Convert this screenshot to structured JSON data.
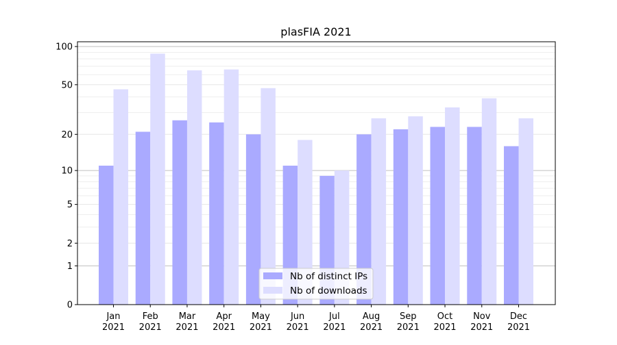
{
  "chart_data": {
    "type": "bar",
    "title": "plasFIA 2021",
    "xlabel": "",
    "ylabel": "",
    "yscale": "log10(1+y)",
    "ylim": [
      0,
      109
    ],
    "yticks": [
      0,
      1,
      2,
      5,
      10,
      20,
      50,
      100
    ],
    "ytick_labels": [
      "0",
      "1",
      "2",
      "5",
      "10",
      "20",
      "50",
      "100"
    ],
    "minor_gridlines": [
      3,
      4,
      6,
      7,
      8,
      9,
      30,
      40,
      60,
      70,
      80,
      90
    ],
    "major_gridlines": [
      1,
      10,
      100
    ],
    "grid": true,
    "legend_position": "bottom-center",
    "categories": [
      "Jan\n2021",
      "Feb\n2021",
      "Mar\n2021",
      "Apr\n2021",
      "May\n2021",
      "Jun\n2021",
      "Jul\n2021",
      "Aug\n2021",
      "Sep\n2021",
      "Oct\n2021",
      "Nov\n2021",
      "Dec\n2021"
    ],
    "series": [
      {
        "name": "Nb of distinct IPs",
        "color": "#aaaaff",
        "values": [
          11,
          21,
          26,
          25,
          20,
          11,
          9,
          20,
          22,
          23,
          23,
          16
        ]
      },
      {
        "name": "Nb of downloads",
        "color": "#ddddff",
        "values": [
          46,
          88,
          65,
          66,
          47,
          18,
          10,
          27,
          28,
          33,
          39,
          27
        ]
      }
    ]
  }
}
